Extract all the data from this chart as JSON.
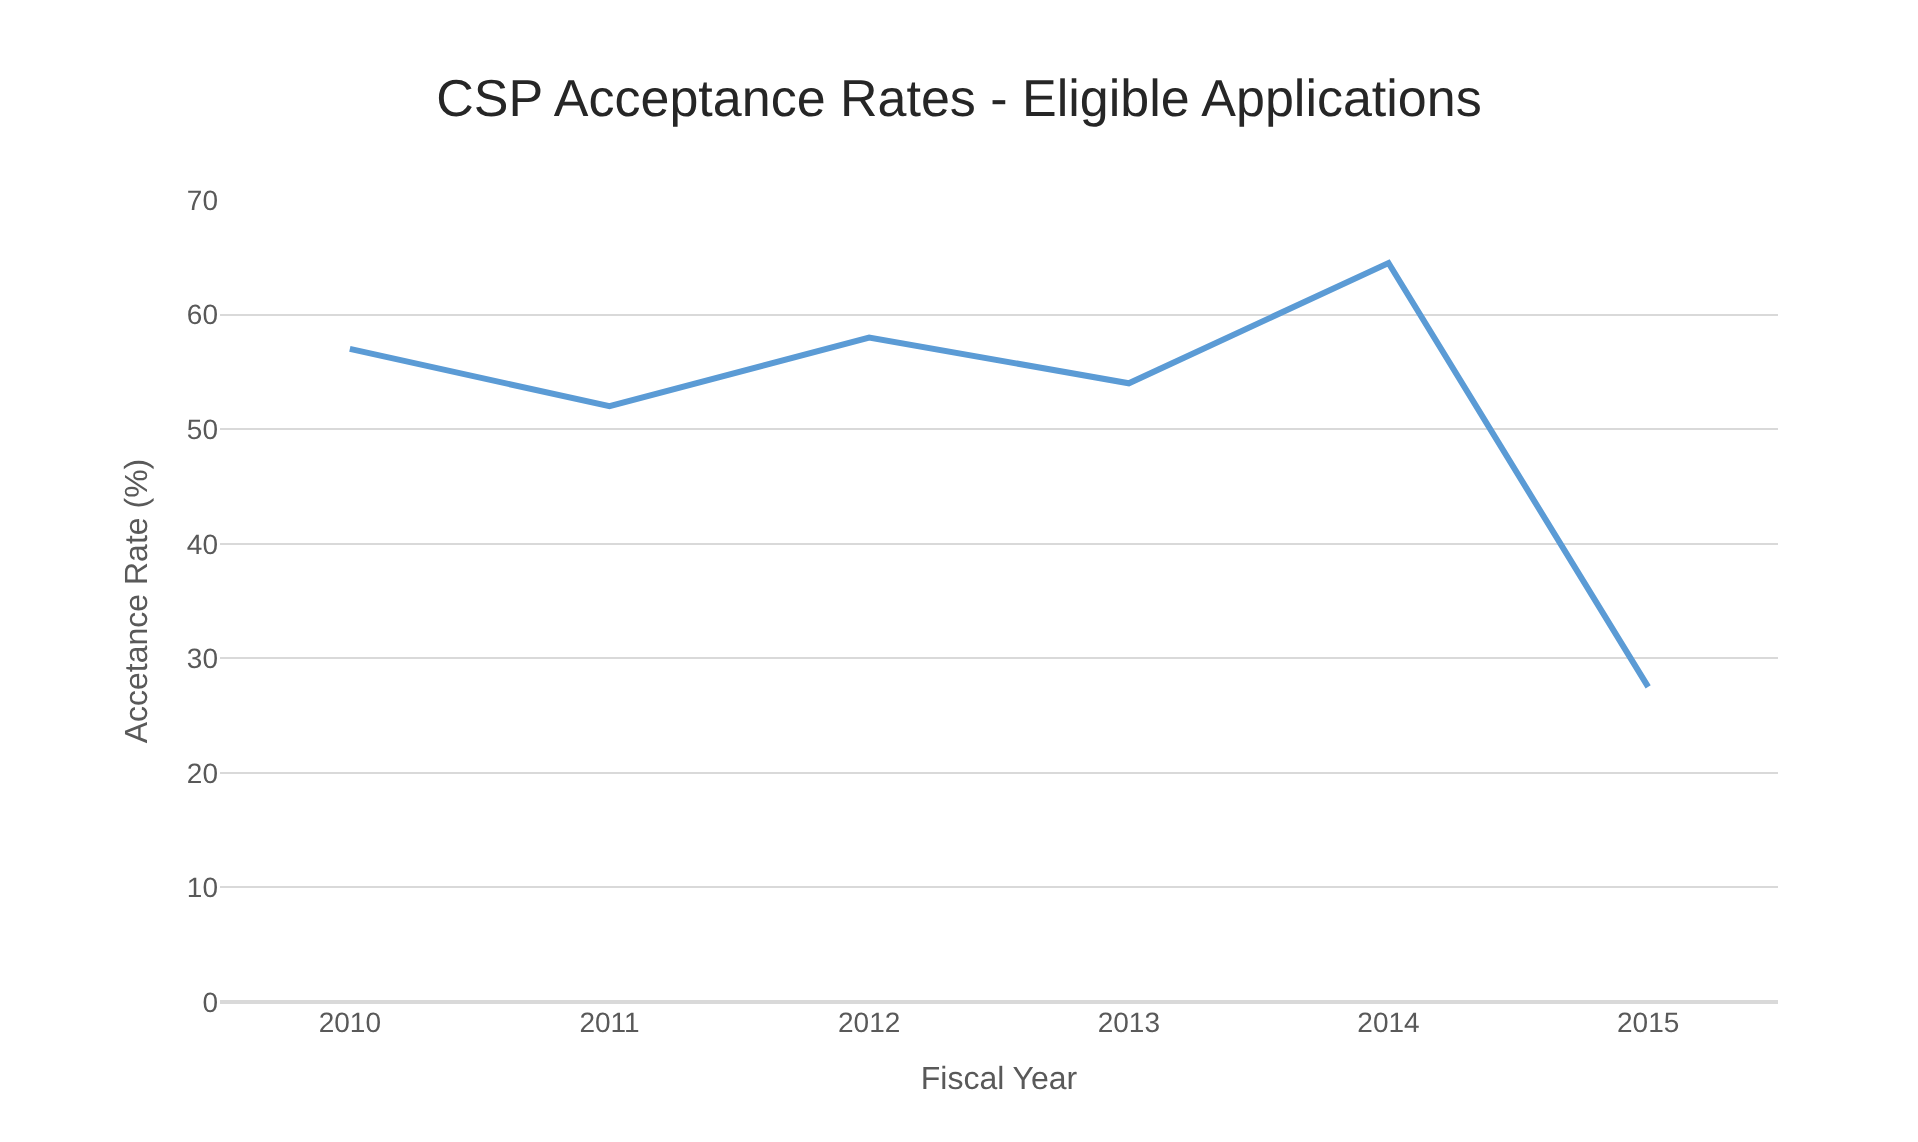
{
  "chart_data": {
    "type": "line",
    "title": "CSP Acceptance Rates - Eligible Applications",
    "xlabel": "Fiscal Year",
    "ylabel": "Accetance Rate (%)",
    "categories": [
      "2010",
      "2011",
      "2012",
      "2013",
      "2014",
      "2015"
    ],
    "series": [
      {
        "color": "#5b9bd5",
        "values": [
          57,
          52,
          58,
          54,
          64.5,
          27.5
        ]
      }
    ],
    "ylim": [
      0,
      70
    ],
    "yticks": [
      0,
      10,
      20,
      30,
      40,
      50,
      60,
      70
    ],
    "grid": "y",
    "marker": "none",
    "line_style": "solid"
  }
}
